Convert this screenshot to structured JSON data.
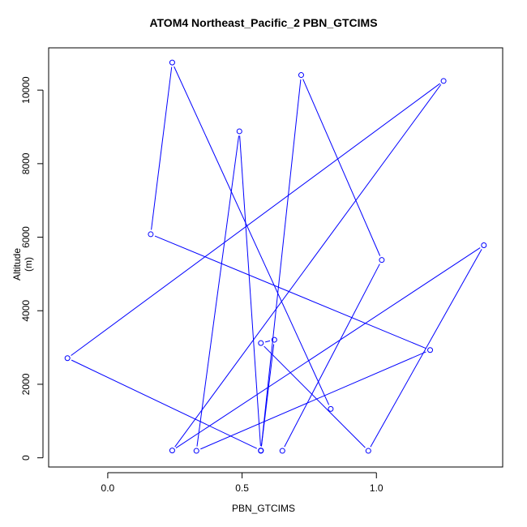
{
  "chart_data": {
    "type": "line",
    "title": "ATOM4 Northeast_Pacific_2 PBN_GTCIMS",
    "xlabel": "PBN_GTCIMS",
    "ylabel": "Altitude (m)",
    "xlim": [
      -0.22,
      1.47
    ],
    "ylim": [
      -250,
      11150
    ],
    "x_ticks": [
      0.0,
      0.5,
      1.0
    ],
    "x_tick_labels": [
      "0.0",
      "0.5",
      "1.0"
    ],
    "y_ticks": [
      0,
      2000,
      4000,
      6000,
      8000,
      10000
    ],
    "y_tick_labels": [
      "0",
      "2000",
      "4000",
      "6000",
      "8000",
      "10000"
    ],
    "grid": false,
    "legend": "none",
    "series": [
      {
        "color": "#0000ff",
        "marker": "open-circle",
        "x": [
          0.65,
          1.02,
          0.72,
          0.57,
          0.62,
          0.57,
          0.97,
          1.4,
          0.24,
          1.25,
          -0.15,
          0.57,
          0.49,
          0.33,
          1.2,
          0.16,
          0.24,
          0.83
        ],
        "y": [
          190,
          5380,
          10410,
          190,
          3210,
          3120,
          190,
          5780,
          200,
          10250,
          2710,
          200,
          8880,
          190,
          2930,
          6080,
          10750,
          1330
        ]
      }
    ]
  }
}
